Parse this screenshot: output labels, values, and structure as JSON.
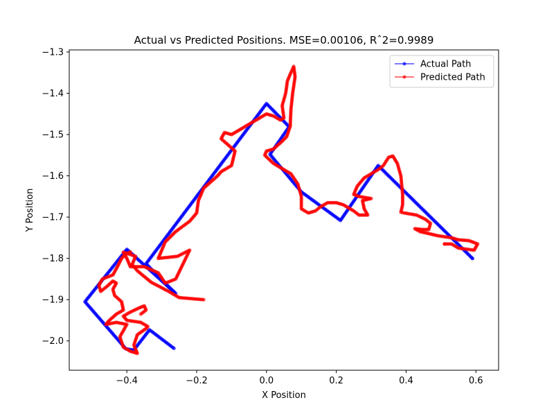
{
  "chart_data": {
    "type": "line",
    "title": "Actual vs Predicted Positions. MSE=0.00106, Rˆ2=0.9989",
    "xlabel": "X Position",
    "ylabel": "Y Position",
    "xlim": [
      -0.565,
      0.665
    ],
    "ylim": [
      -2.071,
      -1.295
    ],
    "xticks": [
      -0.4,
      -0.2,
      0.0,
      0.2,
      0.4,
      0.6
    ],
    "xtick_labels": [
      "−0.4",
      "−0.2",
      "0.0",
      "0.2",
      "0.4",
      "0.6"
    ],
    "yticks": [
      -1.3,
      -1.4,
      -1.5,
      -1.6,
      -1.7,
      -1.8,
      -1.9,
      -2.0
    ],
    "ytick_labels": [
      "−1.3",
      "−1.4",
      "−1.5",
      "−1.6",
      "−1.7",
      "−1.8",
      "−1.9",
      "−2.0"
    ],
    "grid": false,
    "legend_position": "top-right",
    "series": [
      {
        "name": "Actual Path",
        "color": "#0000ff",
        "marker": "circle",
        "points": [
          [
            -0.265,
            -2.018
          ],
          [
            -0.335,
            -1.973
          ],
          [
            -0.38,
            -2.022
          ],
          [
            -0.403,
            -2.019
          ],
          [
            -0.52,
            -1.905
          ],
          [
            -0.4,
            -1.778
          ],
          [
            -0.26,
            -1.885
          ],
          [
            -0.275,
            -1.873
          ],
          [
            -0.345,
            -1.813
          ],
          [
            0.0,
            -1.425
          ],
          [
            0.065,
            -1.481
          ],
          [
            0.01,
            -1.548
          ],
          [
            0.1,
            -1.639
          ],
          [
            0.212,
            -1.708
          ],
          [
            0.32,
            -1.575
          ],
          [
            0.59,
            -1.8
          ]
        ]
      },
      {
        "name": "Predicted Path",
        "color": "#ff0000",
        "marker": "circle",
        "points": [
          [
            -0.18,
            -1.9
          ],
          [
            -0.25,
            -1.895
          ],
          [
            -0.28,
            -1.88
          ],
          [
            -0.33,
            -1.858
          ],
          [
            -0.37,
            -1.83
          ],
          [
            -0.385,
            -1.815
          ],
          [
            -0.375,
            -1.795
          ],
          [
            -0.41,
            -1.785
          ],
          [
            -0.4,
            -1.8
          ],
          [
            -0.39,
            -1.82
          ],
          [
            -0.35,
            -1.82
          ],
          [
            -0.31,
            -1.835
          ],
          [
            -0.29,
            -1.86
          ],
          [
            -0.26,
            -1.85
          ],
          [
            -0.22,
            -1.78
          ],
          [
            -0.255,
            -1.795
          ],
          [
            -0.31,
            -1.8
          ],
          [
            -0.29,
            -1.76
          ],
          [
            -0.26,
            -1.735
          ],
          [
            -0.22,
            -1.71
          ],
          [
            -0.2,
            -1.69
          ],
          [
            -0.195,
            -1.66
          ],
          [
            -0.18,
            -1.63
          ],
          [
            -0.14,
            -1.6
          ],
          [
            -0.13,
            -1.59
          ],
          [
            -0.1,
            -1.575
          ],
          [
            -0.09,
            -1.54
          ],
          [
            -0.11,
            -1.525
          ],
          [
            -0.13,
            -1.51
          ],
          [
            -0.12,
            -1.495
          ],
          [
            -0.1,
            -1.5
          ],
          [
            -0.06,
            -1.48
          ],
          [
            -0.03,
            -1.465
          ],
          [
            0.0,
            -1.45
          ],
          [
            0.02,
            -1.455
          ],
          [
            0.04,
            -1.465
          ],
          [
            0.05,
            -1.46
          ],
          [
            0.045,
            -1.43
          ],
          [
            0.055,
            -1.4
          ],
          [
            0.06,
            -1.37
          ],
          [
            0.07,
            -1.35
          ],
          [
            0.078,
            -1.335
          ],
          [
            0.082,
            -1.36
          ],
          [
            0.075,
            -1.4
          ],
          [
            0.07,
            -1.44
          ],
          [
            0.068,
            -1.48
          ],
          [
            0.058,
            -1.505
          ],
          [
            0.04,
            -1.52
          ],
          [
            0.02,
            -1.535
          ],
          [
            0.0,
            -1.54
          ],
          [
            -0.005,
            -1.55
          ],
          [
            0.02,
            -1.57
          ],
          [
            0.04,
            -1.58
          ],
          [
            0.07,
            -1.595
          ],
          [
            0.09,
            -1.62
          ],
          [
            0.1,
            -1.65
          ],
          [
            0.1,
            -1.68
          ],
          [
            0.12,
            -1.69
          ],
          [
            0.14,
            -1.685
          ],
          [
            0.155,
            -1.675
          ],
          [
            0.175,
            -1.665
          ],
          [
            0.2,
            -1.665
          ],
          [
            0.22,
            -1.67
          ],
          [
            0.25,
            -1.685
          ],
          [
            0.265,
            -1.695
          ],
          [
            0.29,
            -1.695
          ],
          [
            0.28,
            -1.68
          ],
          [
            0.275,
            -1.66
          ],
          [
            0.3,
            -1.655
          ],
          [
            0.265,
            -1.65
          ],
          [
            0.25,
            -1.645
          ],
          [
            0.26,
            -1.625
          ],
          [
            0.28,
            -1.605
          ],
          [
            0.3,
            -1.595
          ],
          [
            0.32,
            -1.585
          ],
          [
            0.335,
            -1.575
          ],
          [
            0.35,
            -1.555
          ],
          [
            0.362,
            -1.552
          ],
          [
            0.375,
            -1.57
          ],
          [
            0.385,
            -1.6
          ],
          [
            0.39,
            -1.645
          ],
          [
            0.39,
            -1.67
          ],
          [
            0.385,
            -1.688
          ],
          [
            0.395,
            -1.69
          ],
          [
            0.43,
            -1.695
          ],
          [
            0.455,
            -1.705
          ],
          [
            0.47,
            -1.715
          ],
          [
            0.465,
            -1.73
          ],
          [
            0.445,
            -1.73
          ],
          [
            0.425,
            -1.728
          ],
          [
            0.44,
            -1.735
          ],
          [
            0.49,
            -1.745
          ],
          [
            0.53,
            -1.75
          ],
          [
            0.55,
            -1.755
          ],
          [
            0.58,
            -1.757
          ],
          [
            0.605,
            -1.765
          ],
          [
            0.595,
            -1.78
          ],
          [
            0.55,
            -1.775
          ],
          [
            0.53,
            -1.765
          ],
          [
            0.51,
            -1.765
          ]
        ]
      },
      {
        "name": "",
        "color": "#ff0000",
        "marker": "circle",
        "points": [
          [
            -0.36,
            -1.935
          ],
          [
            -0.345,
            -1.925
          ],
          [
            -0.35,
            -1.915
          ],
          [
            -0.365,
            -1.92
          ],
          [
            -0.39,
            -1.93
          ],
          [
            -0.41,
            -1.94
          ],
          [
            -0.4,
            -1.95
          ],
          [
            -0.36,
            -1.955
          ],
          [
            -0.34,
            -1.965
          ],
          [
            -0.345,
            -1.97
          ],
          [
            -0.37,
            -1.985
          ],
          [
            -0.38,
            -2.01
          ],
          [
            -0.37,
            -2.03
          ],
          [
            -0.39,
            -2.025
          ],
          [
            -0.41,
            -2.015
          ],
          [
            -0.42,
            -1.99
          ],
          [
            -0.4,
            -1.96
          ],
          [
            -0.43,
            -1.955
          ],
          [
            -0.46,
            -1.96
          ],
          [
            -0.45,
            -1.95
          ],
          [
            -0.43,
            -1.935
          ],
          [
            -0.41,
            -1.925
          ],
          [
            -0.415,
            -1.905
          ],
          [
            -0.435,
            -1.89
          ],
          [
            -0.44,
            -1.875
          ],
          [
            -0.43,
            -1.86
          ],
          [
            -0.44,
            -1.855
          ],
          [
            -0.46,
            -1.87
          ],
          [
            -0.475,
            -1.88
          ],
          [
            -0.48,
            -1.865
          ],
          [
            -0.47,
            -1.85
          ],
          [
            -0.44,
            -1.84
          ],
          [
            -0.43,
            -1.825
          ],
          [
            -0.415,
            -1.8
          ],
          [
            -0.405,
            -1.79
          ],
          [
            -0.39,
            -1.785
          ]
        ]
      }
    ]
  }
}
